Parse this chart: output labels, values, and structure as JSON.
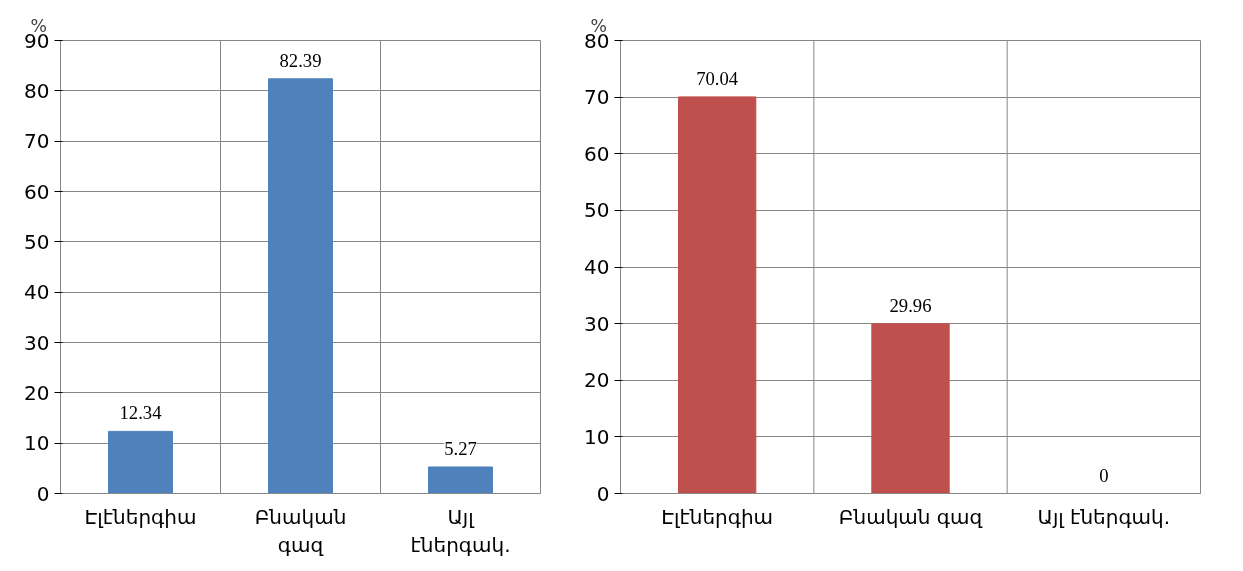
{
  "chart_data": [
    {
      "type": "bar",
      "ylabel": "%",
      "categories": [
        "Էլէներգիա",
        "Բնական գազ",
        "Այլ էներգակ."
      ],
      "values": [
        12.34,
        82.39,
        5.27
      ],
      "color": "#4f81bd",
      "ylim": [
        0,
        90
      ],
      "yticks": [
        0,
        10,
        20,
        30,
        40,
        50,
        60,
        70,
        80,
        90
      ],
      "grid": true,
      "data_labels": true
    },
    {
      "type": "bar",
      "ylabel": "%",
      "categories": [
        "Էլէներգիա",
        "Բնական գազ",
        "Այլ էներգակ."
      ],
      "values": [
        70.04,
        29.96,
        0
      ],
      "color": "#c0504d",
      "ylim": [
        0,
        80
      ],
      "yticks": [
        0,
        10,
        20,
        30,
        40,
        50,
        60,
        70,
        80
      ],
      "grid": true,
      "data_labels": true
    }
  ]
}
